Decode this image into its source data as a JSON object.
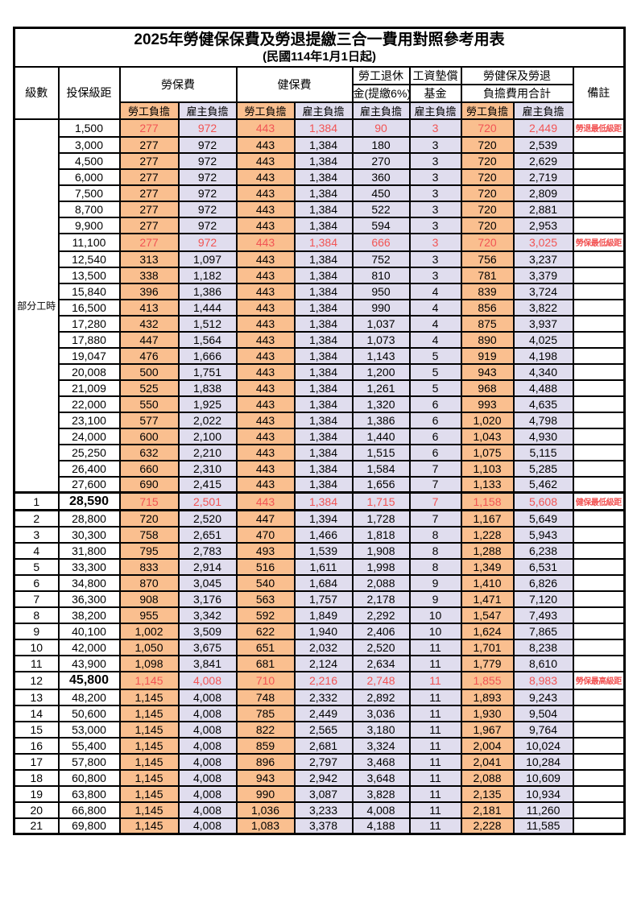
{
  "title": "2025年勞健保保費及勞退提繳三合一費用對照參考用表",
  "subtitle": "(民國114年1月1日起)",
  "colors": {
    "employee_col_bg": "#FABF8F",
    "employer_col_bg": "#E0DDEE",
    "highlight_text": "#F25454",
    "border": "#000000"
  },
  "header": {
    "level": "級數",
    "bracket": "投保級距",
    "labor_ins": "勞保費",
    "health_ins": "健保費",
    "pension_line1": "勞工退休",
    "pension_line2": "金(提繳6%)",
    "wage_fund_line1": "工資墊償",
    "wage_fund_line2": "基金",
    "total_line1": "勞健保及勞退",
    "total_line2": "負擔費用合計",
    "employee": "勞工負擔",
    "employer": "雇主負擔",
    "remark": "備註"
  },
  "table": {
    "part_time_label": "部分工時",
    "part_time_rowspan": 23,
    "rows": [
      {
        "lv": "",
        "pt": true,
        "ptStart": true,
        "br": "1,500",
        "v": [
          "277",
          "972",
          "443",
          "1,384",
          "90",
          "3",
          "720",
          "2,449"
        ],
        "rm": "勞退最低級距",
        "hl": true
      },
      {
        "lv": "",
        "pt": true,
        "br": "3,000",
        "v": [
          "277",
          "972",
          "443",
          "1,384",
          "180",
          "3",
          "720",
          "2,539"
        ],
        "rm": ""
      },
      {
        "lv": "",
        "pt": true,
        "br": "4,500",
        "v": [
          "277",
          "972",
          "443",
          "1,384",
          "270",
          "3",
          "720",
          "2,629"
        ],
        "rm": ""
      },
      {
        "lv": "",
        "pt": true,
        "br": "6,000",
        "v": [
          "277",
          "972",
          "443",
          "1,384",
          "360",
          "3",
          "720",
          "2,719"
        ],
        "rm": ""
      },
      {
        "lv": "",
        "pt": true,
        "br": "7,500",
        "v": [
          "277",
          "972",
          "443",
          "1,384",
          "450",
          "3",
          "720",
          "2,809"
        ],
        "rm": ""
      },
      {
        "lv": "",
        "pt": true,
        "br": "8,700",
        "v": [
          "277",
          "972",
          "443",
          "1,384",
          "522",
          "3",
          "720",
          "2,881"
        ],
        "rm": ""
      },
      {
        "lv": "",
        "pt": true,
        "br": "9,900",
        "v": [
          "277",
          "972",
          "443",
          "1,384",
          "594",
          "3",
          "720",
          "2,953"
        ],
        "rm": ""
      },
      {
        "lv": "",
        "pt": true,
        "br": "11,100",
        "v": [
          "277",
          "972",
          "443",
          "1,384",
          "666",
          "3",
          "720",
          "3,025"
        ],
        "rm": "勞保最低級距",
        "hl": true
      },
      {
        "lv": "",
        "pt": true,
        "br": "12,540",
        "v": [
          "313",
          "1,097",
          "443",
          "1,384",
          "752",
          "3",
          "756",
          "3,237"
        ],
        "rm": ""
      },
      {
        "lv": "",
        "pt": true,
        "br": "13,500",
        "v": [
          "338",
          "1,182",
          "443",
          "1,384",
          "810",
          "3",
          "781",
          "3,379"
        ],
        "rm": ""
      },
      {
        "lv": "",
        "pt": true,
        "br": "15,840",
        "v": [
          "396",
          "1,386",
          "443",
          "1,384",
          "950",
          "4",
          "839",
          "3,724"
        ],
        "rm": ""
      },
      {
        "lv": "",
        "pt": true,
        "br": "16,500",
        "v": [
          "413",
          "1,444",
          "443",
          "1,384",
          "990",
          "4",
          "856",
          "3,822"
        ],
        "rm": ""
      },
      {
        "lv": "",
        "pt": true,
        "br": "17,280",
        "v": [
          "432",
          "1,512",
          "443",
          "1,384",
          "1,037",
          "4",
          "875",
          "3,937"
        ],
        "rm": ""
      },
      {
        "lv": "",
        "pt": true,
        "br": "17,880",
        "v": [
          "447",
          "1,564",
          "443",
          "1,384",
          "1,073",
          "4",
          "890",
          "4,025"
        ],
        "rm": ""
      },
      {
        "lv": "",
        "pt": true,
        "br": "19,047",
        "v": [
          "476",
          "1,666",
          "443",
          "1,384",
          "1,143",
          "5",
          "919",
          "4,198"
        ],
        "rm": ""
      },
      {
        "lv": "",
        "pt": true,
        "br": "20,008",
        "v": [
          "500",
          "1,751",
          "443",
          "1,384",
          "1,200",
          "5",
          "943",
          "4,340"
        ],
        "rm": ""
      },
      {
        "lv": "",
        "pt": true,
        "br": "21,009",
        "v": [
          "525",
          "1,838",
          "443",
          "1,384",
          "1,261",
          "5",
          "968",
          "4,488"
        ],
        "rm": ""
      },
      {
        "lv": "",
        "pt": true,
        "br": "22,000",
        "v": [
          "550",
          "1,925",
          "443",
          "1,384",
          "1,320",
          "6",
          "993",
          "4,635"
        ],
        "rm": ""
      },
      {
        "lv": "",
        "pt": true,
        "br": "23,100",
        "v": [
          "577",
          "2,022",
          "443",
          "1,384",
          "1,386",
          "6",
          "1,020",
          "4,798"
        ],
        "rm": ""
      },
      {
        "lv": "",
        "pt": true,
        "br": "24,000",
        "v": [
          "600",
          "2,100",
          "443",
          "1,384",
          "1,440",
          "6",
          "1,043",
          "4,930"
        ],
        "rm": ""
      },
      {
        "lv": "",
        "pt": true,
        "br": "25,250",
        "v": [
          "632",
          "2,210",
          "443",
          "1,384",
          "1,515",
          "6",
          "1,075",
          "5,115"
        ],
        "rm": ""
      },
      {
        "lv": "",
        "pt": true,
        "br": "26,400",
        "v": [
          "660",
          "2,310",
          "443",
          "1,384",
          "1,584",
          "7",
          "1,103",
          "5,285"
        ],
        "rm": ""
      },
      {
        "lv": "",
        "pt": true,
        "br": "27,600",
        "v": [
          "690",
          "2,415",
          "443",
          "1,384",
          "1,656",
          "7",
          "1,133",
          "5,462"
        ],
        "rm": ""
      },
      {
        "lv": "1",
        "br": "28,590",
        "v": [
          "715",
          "2,501",
          "443",
          "1,384",
          "1,715",
          "7",
          "1,158",
          "5,608"
        ],
        "rm": "健保最低級距",
        "hl": true,
        "bold": true,
        "thick": true
      },
      {
        "lv": "2",
        "br": "28,800",
        "v": [
          "720",
          "2,520",
          "447",
          "1,394",
          "1,728",
          "7",
          "1,167",
          "5,649"
        ],
        "rm": ""
      },
      {
        "lv": "3",
        "br": "30,300",
        "v": [
          "758",
          "2,651",
          "470",
          "1,466",
          "1,818",
          "8",
          "1,228",
          "5,943"
        ],
        "rm": ""
      },
      {
        "lv": "4",
        "br": "31,800",
        "v": [
          "795",
          "2,783",
          "493",
          "1,539",
          "1,908",
          "8",
          "1,288",
          "6,238"
        ],
        "rm": ""
      },
      {
        "lv": "5",
        "br": "33,300",
        "v": [
          "833",
          "2,914",
          "516",
          "1,611",
          "1,998",
          "8",
          "1,349",
          "6,531"
        ],
        "rm": ""
      },
      {
        "lv": "6",
        "br": "34,800",
        "v": [
          "870",
          "3,045",
          "540",
          "1,684",
          "2,088",
          "9",
          "1,410",
          "6,826"
        ],
        "rm": ""
      },
      {
        "lv": "7",
        "br": "36,300",
        "v": [
          "908",
          "3,176",
          "563",
          "1,757",
          "2,178",
          "9",
          "1,471",
          "7,120"
        ],
        "rm": ""
      },
      {
        "lv": "8",
        "br": "38,200",
        "v": [
          "955",
          "3,342",
          "592",
          "1,849",
          "2,292",
          "10",
          "1,547",
          "7,493"
        ],
        "rm": ""
      },
      {
        "lv": "9",
        "br": "40,100",
        "v": [
          "1,002",
          "3,509",
          "622",
          "1,940",
          "2,406",
          "10",
          "1,624",
          "7,865"
        ],
        "rm": ""
      },
      {
        "lv": "10",
        "br": "42,000",
        "v": [
          "1,050",
          "3,675",
          "651",
          "2,032",
          "2,520",
          "11",
          "1,701",
          "8,238"
        ],
        "rm": ""
      },
      {
        "lv": "11",
        "br": "43,900",
        "v": [
          "1,098",
          "3,841",
          "681",
          "2,124",
          "2,634",
          "11",
          "1,779",
          "8,610"
        ],
        "rm": ""
      },
      {
        "lv": "12",
        "br": "45,800",
        "v": [
          "1,145",
          "4,008",
          "710",
          "2,216",
          "2,748",
          "11",
          "1,855",
          "8,983"
        ],
        "rm": "勞保最高級距",
        "hl": true,
        "bold": true
      },
      {
        "lv": "13",
        "br": "48,200",
        "v": [
          "1,145",
          "4,008",
          "748",
          "2,332",
          "2,892",
          "11",
          "1,893",
          "9,243"
        ],
        "rm": ""
      },
      {
        "lv": "14",
        "br": "50,600",
        "v": [
          "1,145",
          "4,008",
          "785",
          "2,449",
          "3,036",
          "11",
          "1,930",
          "9,504"
        ],
        "rm": ""
      },
      {
        "lv": "15",
        "br": "53,000",
        "v": [
          "1,145",
          "4,008",
          "822",
          "2,565",
          "3,180",
          "11",
          "1,967",
          "9,764"
        ],
        "rm": ""
      },
      {
        "lv": "16",
        "br": "55,400",
        "v": [
          "1,145",
          "4,008",
          "859",
          "2,681",
          "3,324",
          "11",
          "2,004",
          "10,024"
        ],
        "rm": ""
      },
      {
        "lv": "17",
        "br": "57,800",
        "v": [
          "1,145",
          "4,008",
          "896",
          "2,797",
          "3,468",
          "11",
          "2,041",
          "10,284"
        ],
        "rm": ""
      },
      {
        "lv": "18",
        "br": "60,800",
        "v": [
          "1,145",
          "4,008",
          "943",
          "2,942",
          "3,648",
          "11",
          "2,088",
          "10,609"
        ],
        "rm": ""
      },
      {
        "lv": "19",
        "br": "63,800",
        "v": [
          "1,145",
          "4,008",
          "990",
          "3,087",
          "3,828",
          "11",
          "2,135",
          "10,934"
        ],
        "rm": ""
      },
      {
        "lv": "20",
        "br": "66,800",
        "v": [
          "1,145",
          "4,008",
          "1,036",
          "3,233",
          "4,008",
          "11",
          "2,181",
          "11,260"
        ],
        "rm": ""
      },
      {
        "lv": "21",
        "br": "69,800",
        "v": [
          "1,145",
          "4,008",
          "1,083",
          "3,378",
          "4,188",
          "11",
          "2,228",
          "11,585"
        ],
        "rm": ""
      }
    ]
  }
}
